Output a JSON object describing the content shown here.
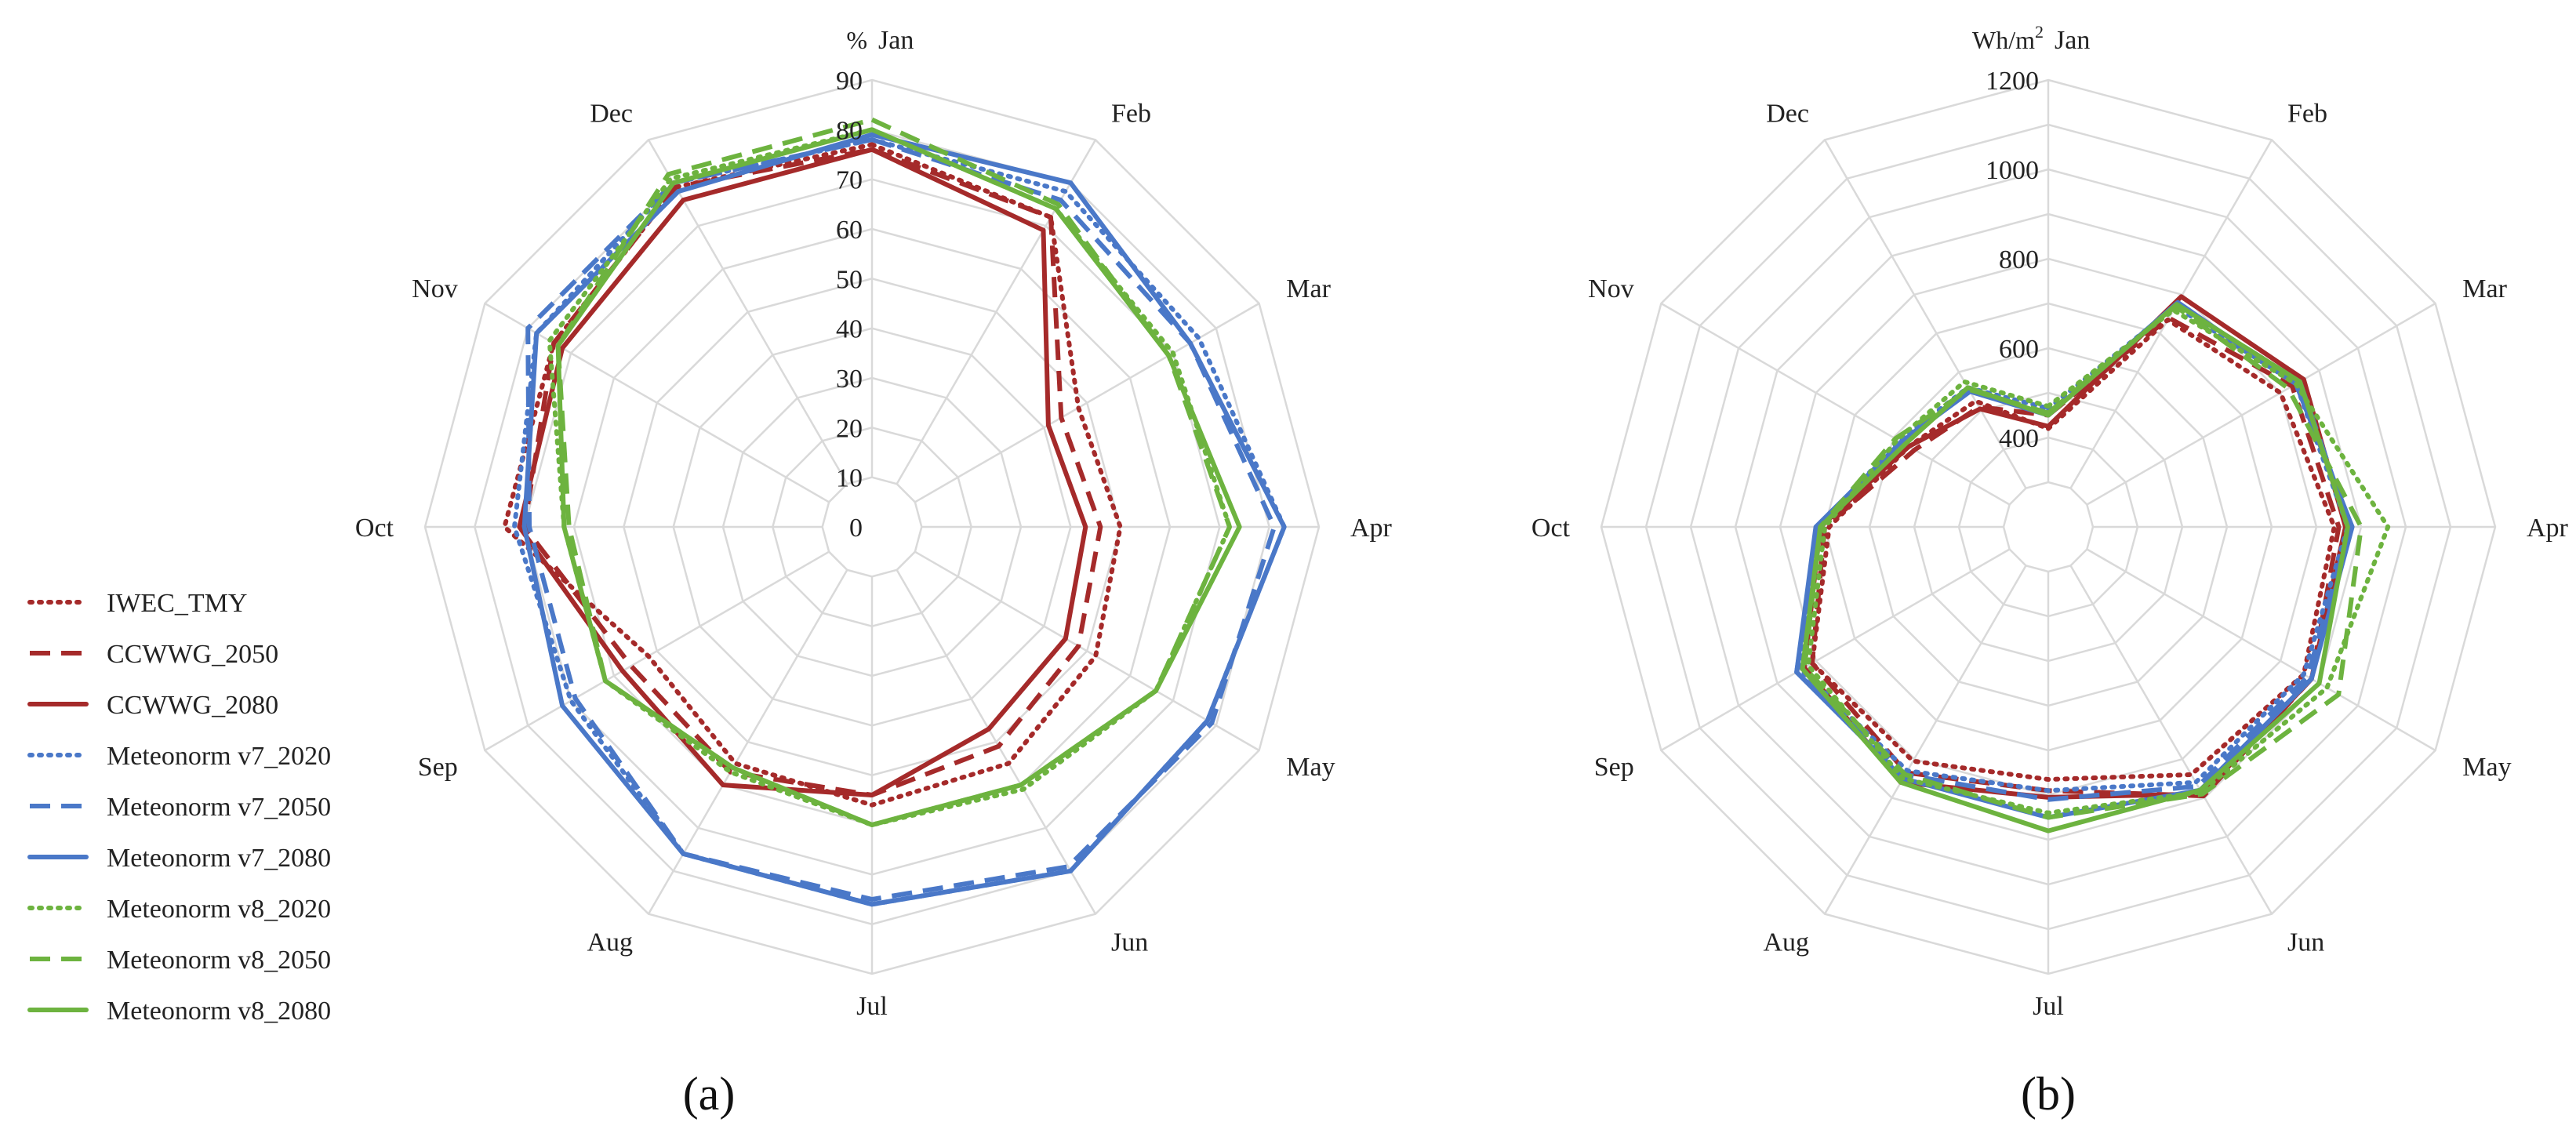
{
  "chart_data": [
    {
      "type": "radar",
      "panel_label": "a",
      "unit": "%",
      "rlim": [
        0,
        90
      ],
      "ticks": [
        0,
        10,
        20,
        30,
        40,
        50,
        60,
        70,
        80,
        90
      ],
      "tick_labels": [
        "0",
        "10",
        "20",
        "30",
        "40",
        "50",
        "60",
        "70",
        "80",
        "90"
      ],
      "categories": [
        "Jan",
        "Feb",
        "Mar",
        "Apr",
        "May",
        "Jun",
        "Jul",
        "Aug",
        "Sep",
        "Oct",
        "Nov",
        "Dec"
      ],
      "series": [
        {
          "name": "IWEC_TMY",
          "values": [
            77,
            72,
            48,
            50,
            52,
            55,
            56,
            55,
            52,
            74,
            74,
            79
          ]
        },
        {
          "name": "CCWWG_2050",
          "values": [
            76,
            72,
            44,
            46,
            48,
            51,
            54,
            57,
            56,
            70,
            74,
            79
          ]
        },
        {
          "name": "CCWWG_2080",
          "values": [
            76,
            69,
            41,
            43,
            45,
            47,
            54,
            60,
            58,
            71,
            72,
            76
          ]
        },
        {
          "name": "Meteonorm v7_2020",
          "values": [
            78,
            78,
            76,
            83,
            78,
            80,
            76,
            76,
            70,
            72,
            78,
            80
          ]
        },
        {
          "name": "Meteonorm v7_2050",
          "values": [
            78,
            76,
            74,
            81,
            79,
            79,
            75,
            76,
            69,
            69,
            80,
            80
          ]
        },
        {
          "name": "Meteonorm v7_2080",
          "values": [
            79,
            80,
            74,
            83,
            78,
            80,
            76,
            76,
            72,
            70,
            78,
            78
          ]
        },
        {
          "name": "Meteonorm v8_2020",
          "values": [
            80,
            74,
            70,
            72,
            66,
            61,
            60,
            57,
            62,
            62,
            75,
            81
          ]
        },
        {
          "name": "Meteonorm v8_2050",
          "values": [
            82,
            75,
            69,
            72,
            66,
            60,
            60,
            56,
            62,
            61,
            73,
            82
          ]
        },
        {
          "name": "Meteonorm v8_2080",
          "values": [
            80,
            74,
            69,
            74,
            66,
            60,
            60,
            56,
            62,
            62,
            73,
            80
          ]
        }
      ]
    },
    {
      "type": "radar",
      "panel_label": "b",
      "unit": "Wh/m²",
      "rlim": [
        200,
        1200
      ],
      "ticks": [
        400,
        600,
        800,
        1000,
        1200
      ],
      "tick_labels": [
        "400",
        "600",
        "800",
        "1000",
        "1200"
      ],
      "categories": [
        "Jan",
        "Feb",
        "Mar",
        "Apr",
        "May",
        "Jun",
        "Jul",
        "Aug",
        "Sep",
        "Oct",
        "Nov",
        "Dec"
      ],
      "series": [
        {
          "name": "IWEC_TMY",
          "values": [
            420,
            735,
            800,
            840,
            860,
            840,
            765,
            805,
            810,
            690,
            560,
            525
          ]
        },
        {
          "name": "CCWWG_2050",
          "values": [
            450,
            740,
            830,
            850,
            880,
            895,
            790,
            835,
            810,
            700,
            545,
            510
          ]
        },
        {
          "name": "CCWWG_2080",
          "values": [
            425,
            795,
            860,
            865,
            880,
            890,
            805,
            860,
            830,
            710,
            560,
            505
          ]
        },
        {
          "name": "Meteonorm v7_2020",
          "values": [
            465,
            770,
            840,
            870,
            860,
            860,
            790,
            830,
            840,
            715,
            585,
            560
          ]
        },
        {
          "name": "Meteonorm v7_2050",
          "values": [
            450,
            775,
            850,
            875,
            870,
            870,
            810,
            840,
            850,
            715,
            580,
            555
          ]
        },
        {
          "name": "Meteonorm v7_2080",
          "values": [
            450,
            780,
            840,
            880,
            880,
            880,
            850,
            850,
            850,
            720,
            580,
            550
          ]
        },
        {
          "name": "Meteonorm v8_2020",
          "values": [
            470,
            760,
            840,
            960,
            920,
            885,
            840,
            850,
            820,
            700,
            590,
            575
          ]
        },
        {
          "name": "Meteonorm v8_2050",
          "values": [
            455,
            770,
            820,
            900,
            950,
            890,
            850,
            840,
            830,
            710,
            595,
            555
          ]
        },
        {
          "name": "Meteonorm v8_2080",
          "values": [
            450,
            775,
            850,
            870,
            900,
            880,
            880,
            860,
            835,
            710,
            570,
            560
          ]
        }
      ]
    }
  ],
  "legend": [
    {
      "name": "IWEC_TMY",
      "color": "#a52a2a",
      "dash": "dotted"
    },
    {
      "name": "CCWWG_2050",
      "color": "#a52a2a",
      "dash": "dashed"
    },
    {
      "name": "CCWWG_2080",
      "color": "#a52a2a",
      "dash": "solid"
    },
    {
      "name": "Meteonorm v7_2020",
      "color": "#4a78c8",
      "dash": "dotted"
    },
    {
      "name": "Meteonorm v7_2050",
      "color": "#4a78c8",
      "dash": "dashed"
    },
    {
      "name": "Meteonorm v7_2080",
      "color": "#4a78c8",
      "dash": "solid"
    },
    {
      "name": "Meteonorm v8_2020",
      "color": "#6db33f",
      "dash": "dotted"
    },
    {
      "name": "Meteonorm v8_2050",
      "color": "#6db33f",
      "dash": "dashed"
    },
    {
      "name": "Meteonorm v8_2080",
      "color": "#6db33f",
      "dash": "solid"
    }
  ],
  "panel_labels": [
    "(a)",
    "(b)"
  ]
}
